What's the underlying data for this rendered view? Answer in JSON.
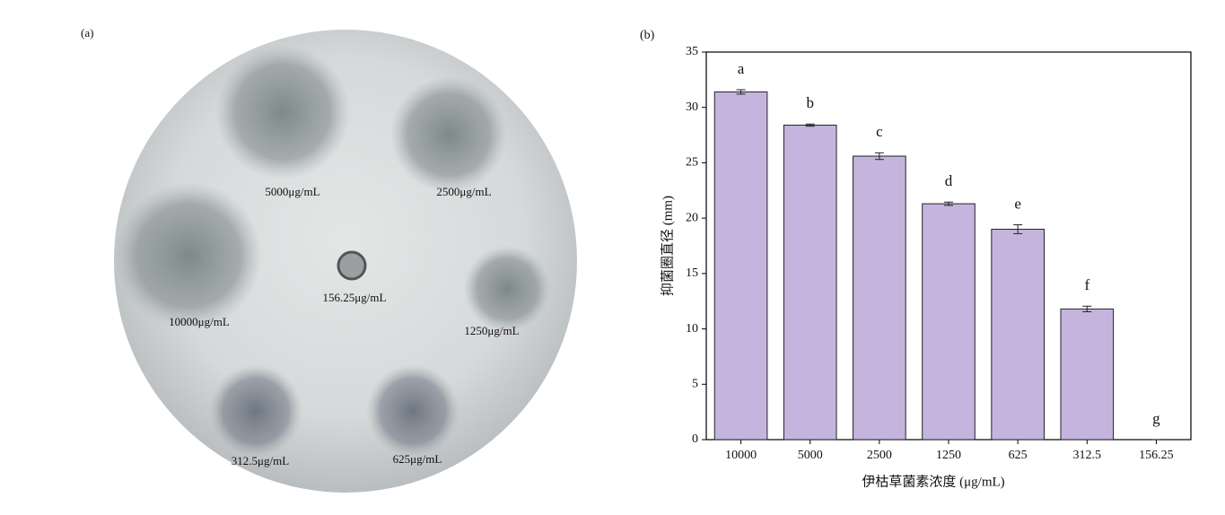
{
  "panel_a": {
    "label": "(a)",
    "spots": [
      "5000μg/mL",
      "2500μg/mL",
      "156.25μg/mL",
      "10000μg/mL",
      "1250μg/mL",
      "312.5μg/mL",
      "625μg/mL"
    ]
  },
  "chart_data": {
    "type": "bar",
    "panel_label": "(b)",
    "x_label": "伊枯草菌素浓度 (μg/mL)",
    "y_label": "抑菌圈直径 (mm)",
    "categories": [
      "10000",
      "5000",
      "2500",
      "1250",
      "625",
      "312.5",
      "156.25"
    ],
    "values": [
      31.4,
      28.4,
      25.6,
      21.3,
      19.0,
      11.8,
      0
    ],
    "errors": [
      0.2,
      0.1,
      0.3,
      0.15,
      0.4,
      0.25,
      0
    ],
    "letters": [
      "a",
      "b",
      "c",
      "d",
      "e",
      "f",
      "g"
    ],
    "color": "#c5b5de",
    "ylim": [
      0,
      35
    ],
    "yticks": [
      0,
      5,
      10,
      15,
      20,
      25,
      30,
      35
    ]
  }
}
